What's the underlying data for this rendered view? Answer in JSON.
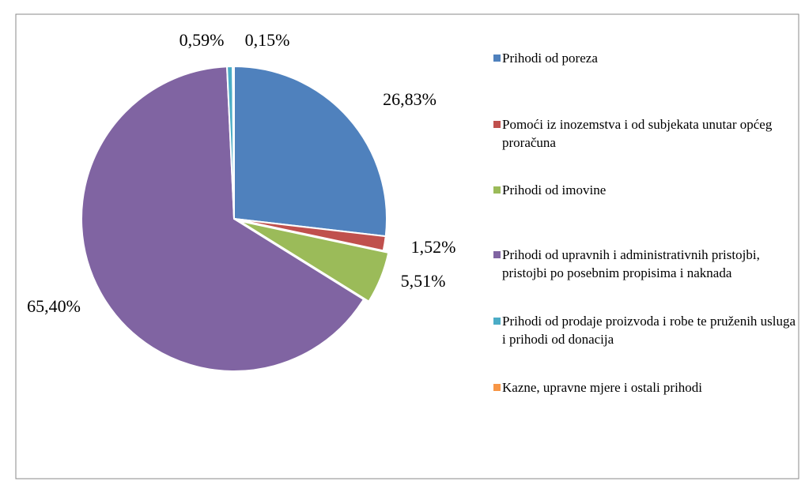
{
  "chart_data": {
    "type": "pie",
    "categories": [
      "Prihodi od poreza",
      "Pomoći iz inozemstva i od subjekata unutar općeg proračuna",
      "Prihodi od imovine",
      "Prihodi od upravnih i administrativnih pristojbi, pristojbi po posebnim propisima i naknada",
      "Prihodi od prodaje proizvoda i robe te pruženih usluga i prihodi od donacija",
      "Kazne, upravne mjere i ostali prihodi"
    ],
    "values": [
      26.83,
      1.52,
      5.51,
      65.4,
      0.59,
      0.15
    ],
    "value_labels": [
      "26,83%",
      "1,52%",
      "5,51%",
      "65,40%",
      "0,59%",
      "0,15%"
    ],
    "colors": [
      "#4f81bd",
      "#c0504d",
      "#9bbb59",
      "#8064a2",
      "#4bacc6",
      "#f79646"
    ],
    "legend": "right"
  }
}
